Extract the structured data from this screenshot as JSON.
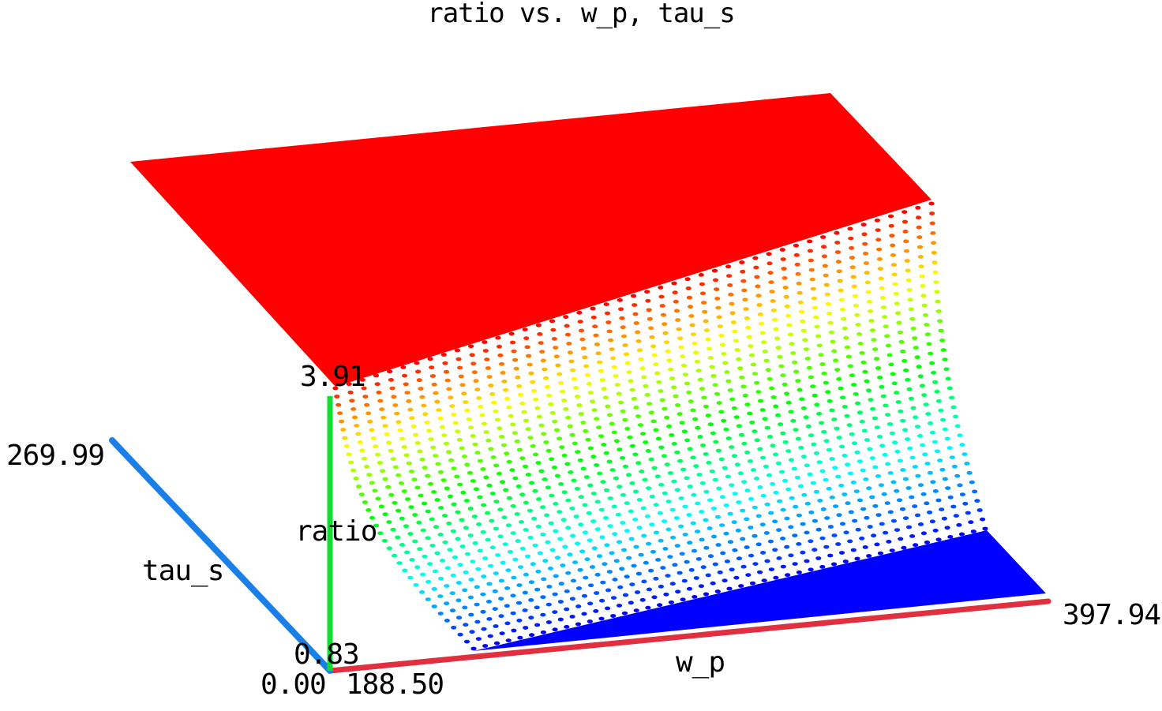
{
  "chart_data": {
    "type": "scatter",
    "title": "ratio vs. w_p, tau_s",
    "xlabel": "w_p",
    "ylabel": "tau_s",
    "zlabel": "ratio",
    "x_range": [
      188.5,
      397.94
    ],
    "y_range": [
      0.0,
      269.99
    ],
    "z_range": [
      0.83,
      3.91
    ],
    "tick_labels": {
      "x_min": "188.50",
      "x_max": "397.94",
      "y_min": "0.00",
      "y_max": "269.99",
      "z_min": "0.83",
      "z_max": "3.91"
    },
    "grid": false,
    "legend": "none",
    "colormap": [
      "#0000ff",
      "#00ffff",
      "#00ff00",
      "#ffff00",
      "#ff0000"
    ],
    "axis_colors": {
      "x_axis": "#e03040",
      "y_axis": "#1a80e8",
      "z_axis": "#11dd33"
    },
    "surface_description_values": {
      "plateau_ratio": 3.91,
      "floor_ratio": 0.83
    }
  }
}
